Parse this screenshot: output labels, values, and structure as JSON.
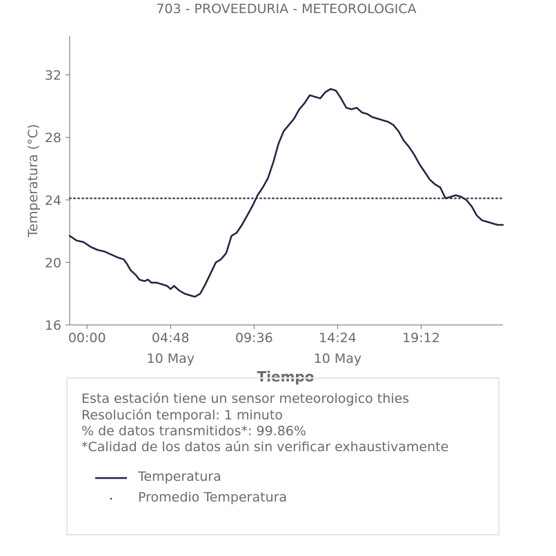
{
  "chart_data": {
    "type": "line",
    "title": "703 - PROVEEDURIA - METEOROLOGICA",
    "xlabel": "Tiempo",
    "ylabel": "Temperatura (°C)",
    "ylim": [
      16,
      34.5
    ],
    "yticks": [
      16,
      20,
      24,
      28,
      32
    ],
    "xlim_hours": [
      -1.0,
      23.9
    ],
    "xticks": [
      {
        "hour": 0.0,
        "label": "00:00",
        "sublabel": ""
      },
      {
        "hour": 4.8,
        "label": "04:48",
        "sublabel": "10 May"
      },
      {
        "hour": 9.6,
        "label": "09:36",
        "sublabel": ""
      },
      {
        "hour": 14.4,
        "label": "14:24",
        "sublabel": "10 May"
      },
      {
        "hour": 19.2,
        "label": "19:12",
        "sublabel": ""
      }
    ],
    "grid": false,
    "series": [
      {
        "name": "Temperatura",
        "color": "#222244",
        "style": "solid",
        "points": [
          [
            -1.0,
            21.7
          ],
          [
            -0.6,
            21.4
          ],
          [
            -0.2,
            21.3
          ],
          [
            0.2,
            21.0
          ],
          [
            0.6,
            20.8
          ],
          [
            1.0,
            20.7
          ],
          [
            1.4,
            20.5
          ],
          [
            1.8,
            20.3
          ],
          [
            2.1,
            20.2
          ],
          [
            2.3,
            19.9
          ],
          [
            2.5,
            19.5
          ],
          [
            2.8,
            19.2
          ],
          [
            3.0,
            18.9
          ],
          [
            3.3,
            18.8
          ],
          [
            3.5,
            18.9
          ],
          [
            3.7,
            18.7
          ],
          [
            4.0,
            18.7
          ],
          [
            4.3,
            18.6
          ],
          [
            4.6,
            18.5
          ],
          [
            4.8,
            18.3
          ],
          [
            5.0,
            18.5
          ],
          [
            5.3,
            18.2
          ],
          [
            5.6,
            18.0
          ],
          [
            5.9,
            17.9
          ],
          [
            6.2,
            17.8
          ],
          [
            6.5,
            18.0
          ],
          [
            6.8,
            18.6
          ],
          [
            7.1,
            19.3
          ],
          [
            7.4,
            20.0
          ],
          [
            7.7,
            20.2
          ],
          [
            8.0,
            20.6
          ],
          [
            8.3,
            21.7
          ],
          [
            8.6,
            21.9
          ],
          [
            8.9,
            22.4
          ],
          [
            9.2,
            23.0
          ],
          [
            9.5,
            23.6
          ],
          [
            9.8,
            24.3
          ],
          [
            10.1,
            24.8
          ],
          [
            10.4,
            25.4
          ],
          [
            10.7,
            26.4
          ],
          [
            11.0,
            27.6
          ],
          [
            11.3,
            28.4
          ],
          [
            11.6,
            28.8
          ],
          [
            11.9,
            29.2
          ],
          [
            12.2,
            29.8
          ],
          [
            12.5,
            30.2
          ],
          [
            12.8,
            30.7
          ],
          [
            13.1,
            30.6
          ],
          [
            13.4,
            30.5
          ],
          [
            13.7,
            30.9
          ],
          [
            14.0,
            31.1
          ],
          [
            14.3,
            31.0
          ],
          [
            14.6,
            30.5
          ],
          [
            14.9,
            29.9
          ],
          [
            15.2,
            29.8
          ],
          [
            15.5,
            29.9
          ],
          [
            15.8,
            29.6
          ],
          [
            16.1,
            29.5
          ],
          [
            16.4,
            29.3
          ],
          [
            16.7,
            29.2
          ],
          [
            17.0,
            29.1
          ],
          [
            17.3,
            29.0
          ],
          [
            17.6,
            28.8
          ],
          [
            17.9,
            28.4
          ],
          [
            18.2,
            27.8
          ],
          [
            18.5,
            27.4
          ],
          [
            18.8,
            26.9
          ],
          [
            19.1,
            26.3
          ],
          [
            19.4,
            25.8
          ],
          [
            19.7,
            25.3
          ],
          [
            20.0,
            25.0
          ],
          [
            20.3,
            24.8
          ],
          [
            20.6,
            24.1
          ],
          [
            20.9,
            24.2
          ],
          [
            21.2,
            24.3
          ],
          [
            21.5,
            24.2
          ],
          [
            21.8,
            24.0
          ],
          [
            22.1,
            23.6
          ],
          [
            22.4,
            23.0
          ],
          [
            22.7,
            22.7
          ],
          [
            23.0,
            22.6
          ],
          [
            23.3,
            22.5
          ],
          [
            23.6,
            22.4
          ],
          [
            23.9,
            22.4
          ]
        ]
      },
      {
        "name": "Promedio Temperatura",
        "color": "#222244",
        "style": "dotted",
        "constant": 24.1
      }
    ]
  },
  "info_box": {
    "line1": "Esta estación tiene un sensor meteorologico thies",
    "line2": "Resolución temporal: 1 minuto",
    "line3": "% de datos transmitidos*: 99.86%",
    "line4": "*Calidad de los datos aún sin verificar exhaustivamente",
    "legend": {
      "series_1": "Temperatura",
      "series_2": "Promedio Temperatura"
    }
  }
}
